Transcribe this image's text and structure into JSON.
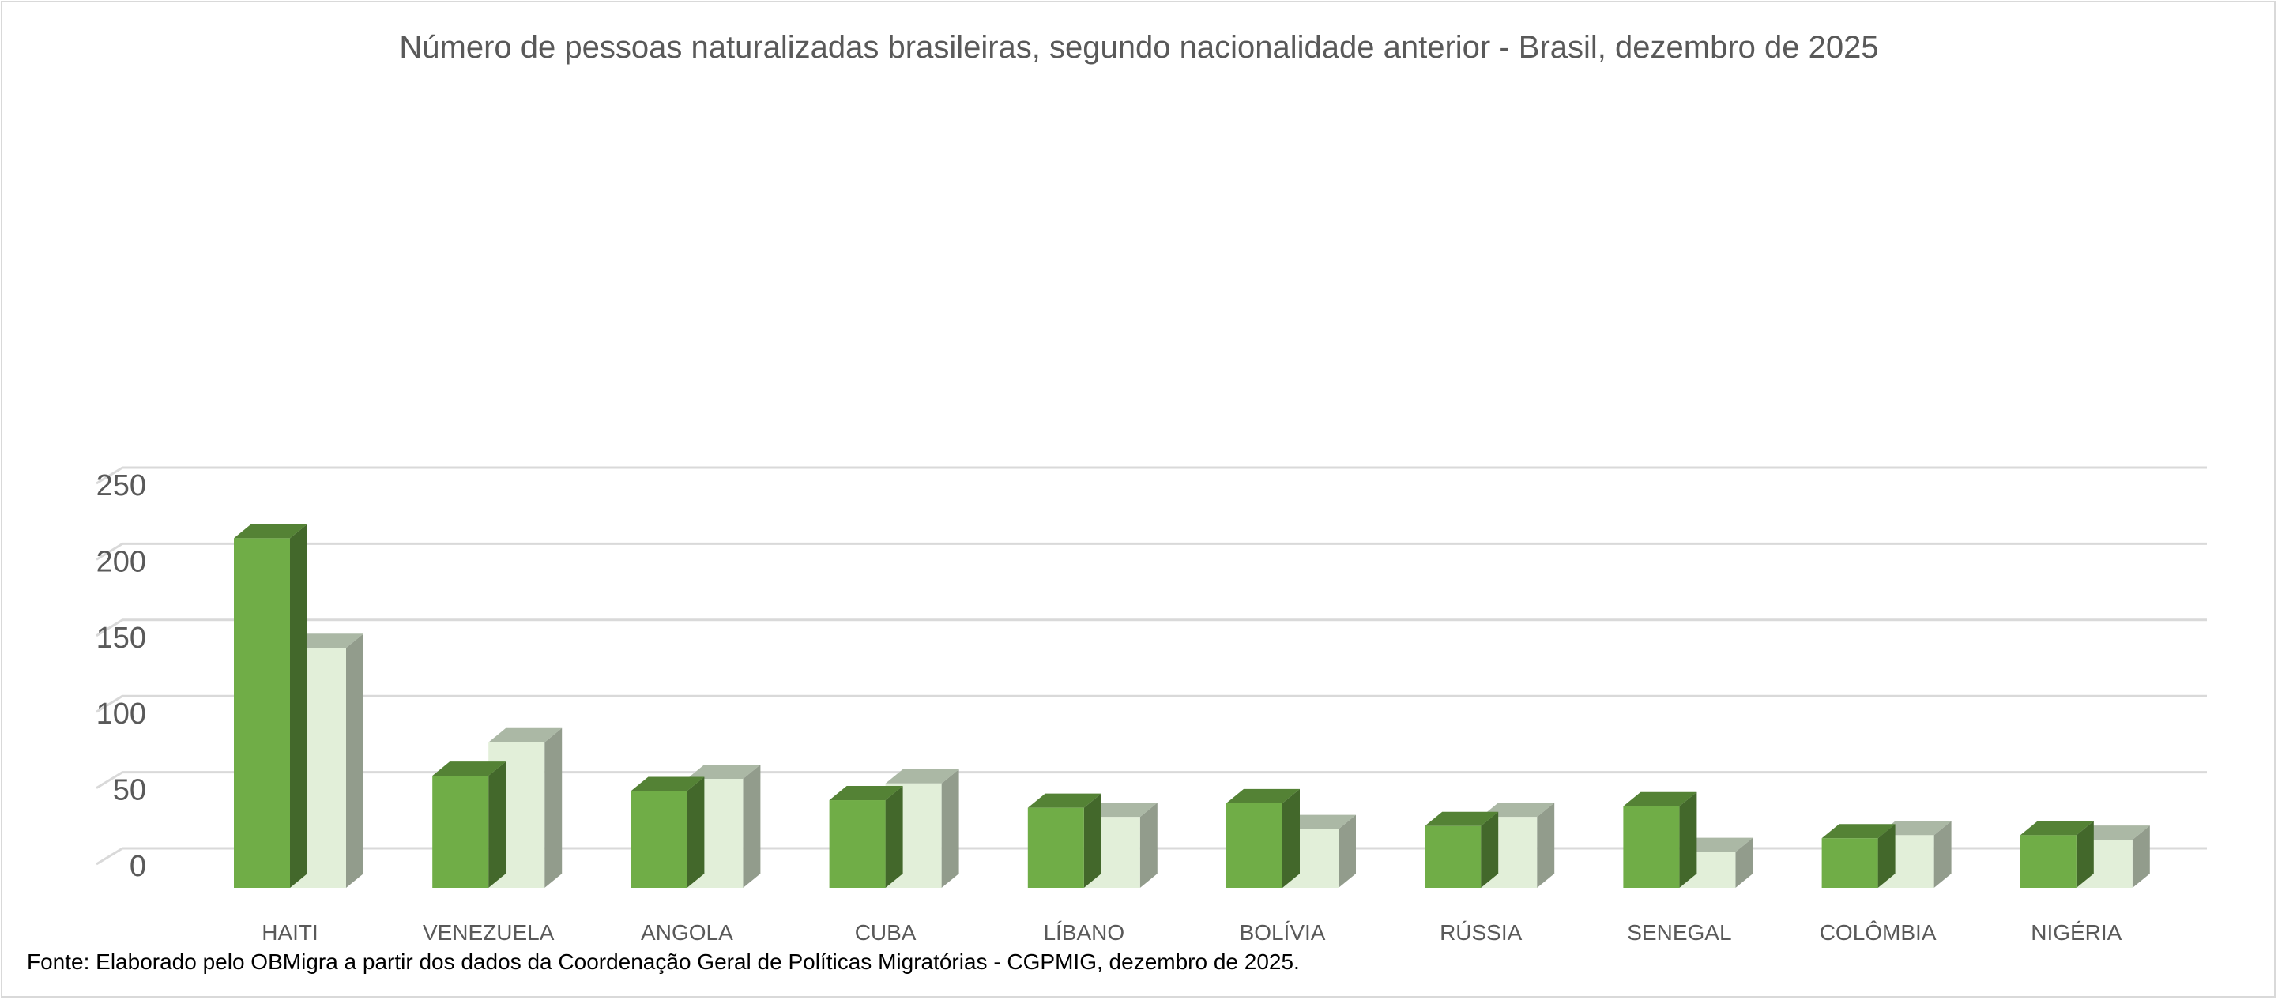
{
  "chart_data": {
    "type": "bar",
    "title": "Número de pessoas naturalizadas brasileiras, segundo nacionalidade anterior - Brasil, dezembro de 2025",
    "source": "Fonte: Elaborado pelo OBMigra a partir dos dados da Coordenação Geral de Políticas Migratórias - CGPMIG, dezembro de 2025.",
    "categories": [
      "HAITI",
      "VENEZUELA",
      "ANGOLA",
      "CUBA",
      "LÍBANO",
      "BOLÍVIA",
      "RÚSSIA",
      "SENEGAL",
      "COLÔMBIA",
      "NIGÉRIA"
    ],
    "series": [
      {
        "values": [
          214,
          58,
          48,
          42,
          37,
          40,
          25,
          38,
          17,
          19
        ]
      },
      {
        "values": [
          142,
          80,
          56,
          53,
          31,
          23,
          31,
          8,
          19,
          16
        ]
      }
    ],
    "y_ticks": [
      "0",
      "50",
      "100",
      "150",
      "200",
      "250"
    ],
    "ylim": [
      0,
      250
    ],
    "grid": true,
    "legend": "none",
    "style": "3d-clustered-column",
    "colors": {
      "series1_front": "#70ad47",
      "series1_top": "#548235",
      "series1_side": "#43682b",
      "series2_front": "#e2efd9",
      "series2_top": "#abb8a5",
      "series2_side": "#929c8c",
      "grid": "#d9d9d9"
    }
  }
}
